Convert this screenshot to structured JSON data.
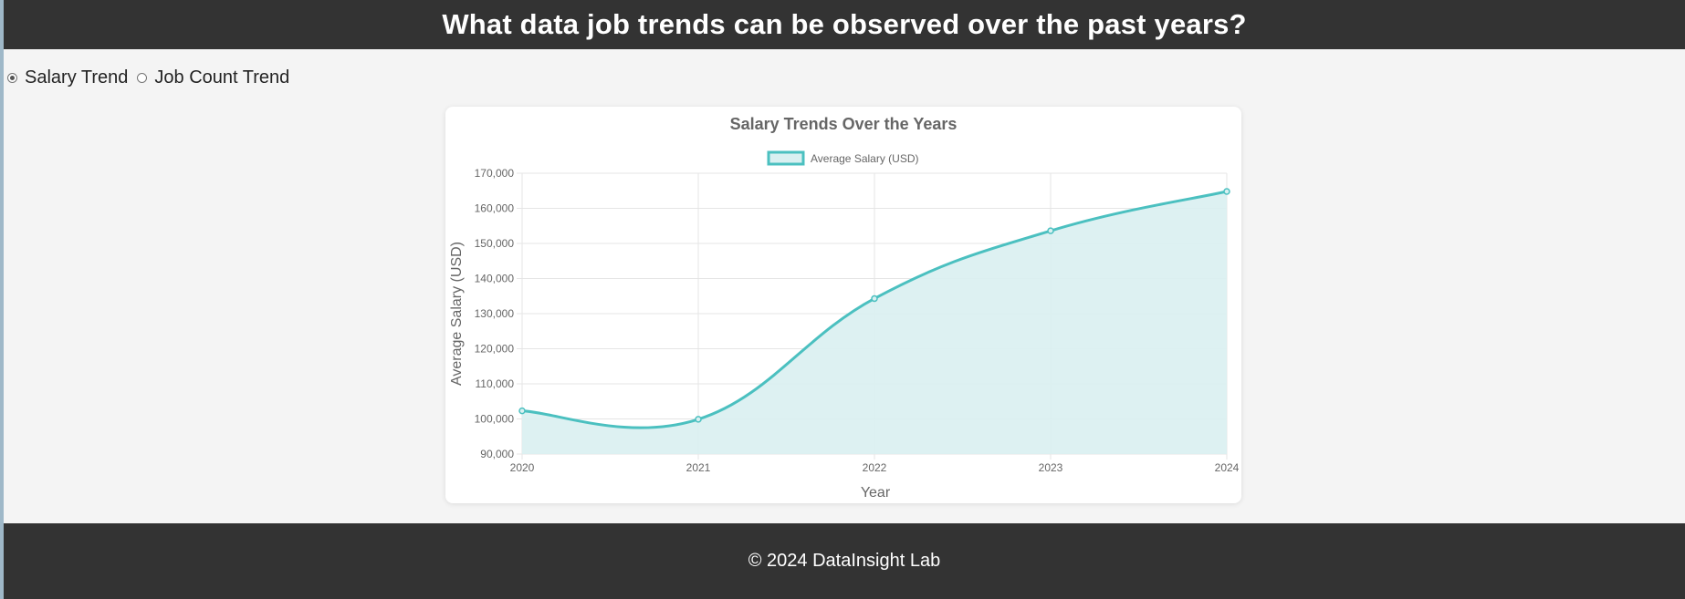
{
  "header": {
    "title": "What data job trends can be observed over the past years?"
  },
  "controls": {
    "options": [
      {
        "label": "Salary Trend",
        "checked": true
      },
      {
        "label": "Job Count Trend",
        "checked": false
      }
    ]
  },
  "chart_data": {
    "type": "line",
    "title": "Salary Trends Over the Years",
    "x": [
      "2020",
      "2021",
      "2022",
      "2023",
      "2024"
    ],
    "series": [
      {
        "name": "Average Salary (USD)",
        "values": [
          102300,
          99900,
          134300,
          153600,
          164800
        ]
      }
    ],
    "xlabel": "Year",
    "ylabel": "Average Salary (USD)",
    "ylim": [
      90000,
      170000
    ],
    "yticks": [
      90000,
      100000,
      110000,
      120000,
      130000,
      140000,
      150000,
      160000,
      170000
    ],
    "grid": true,
    "fill": true,
    "legend_position": "top",
    "colors": {
      "line": "#4bc0c0",
      "fill": "#d9f0f1"
    }
  },
  "footer": {
    "text": "© 2024 DataInsight Lab"
  }
}
